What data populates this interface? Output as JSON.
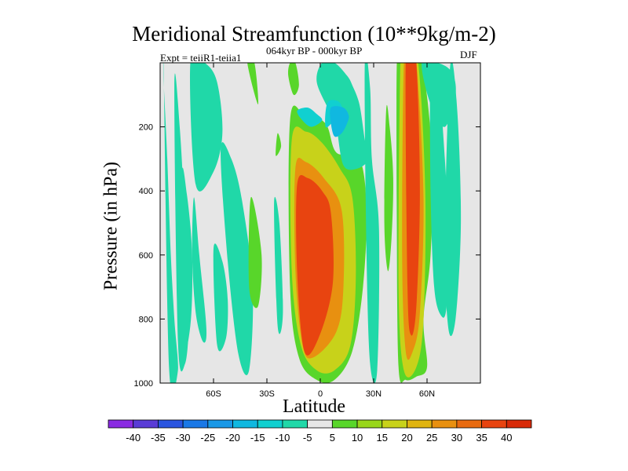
{
  "chart_data": {
    "type": "heatmap",
    "title": "Meridional Streamfunction (10**9kg/m-2)",
    "subtitle": "064kyr BP - 000kyr BP",
    "annotation_left": "Expt = teiiR1-teiia1",
    "annotation_right": "DJF",
    "xlabel": "Latitude",
    "ylabel": "Pressure (in hPa)",
    "xlim": [
      -90,
      90
    ],
    "ylim": [
      1000,
      0
    ],
    "y_inverted": true,
    "x_ticks": [
      {
        "value": -60,
        "label": "60S"
      },
      {
        "value": -30,
        "label": "30S"
      },
      {
        "value": 0,
        "label": "0"
      },
      {
        "value": 30,
        "label": "30N"
      },
      {
        "value": 60,
        "label": "60N"
      }
    ],
    "y_ticks": [
      {
        "value": 200,
        "label": "200"
      },
      {
        "value": 400,
        "label": "400"
      },
      {
        "value": 600,
        "label": "600"
      },
      {
        "value": 800,
        "label": "800"
      },
      {
        "value": 1000,
        "label": "1000"
      }
    ],
    "zero_band_color": "#e6e6e6",
    "colorbar": {
      "levels": [
        "-40",
        "-35",
        "-30",
        "-25",
        "-20",
        "-15",
        "-10",
        "-5",
        "5",
        "10",
        "15",
        "20",
        "25",
        "30",
        "35",
        "40"
      ],
      "colors": [
        "#8a2be2",
        "#5a3cd6",
        "#2a55e0",
        "#1a78e6",
        "#1a98e6",
        "#10b8e0",
        "#10d0d0",
        "#20d8a8",
        "#e6e6e6",
        "#58d62a",
        "#98d61a",
        "#c8d21a",
        "#e0b410",
        "#e89010",
        "#e86a10",
        "#e84410",
        "#d82a08"
      ]
    },
    "fields": [
      {
        "lat": [
          -88,
          -85,
          -80,
          -82,
          -84,
          -86,
          -88
        ],
        "p": [
          30,
          950,
          960,
          800,
          600,
          300,
          60
        ],
        "value": -7
      },
      {
        "lat": [
          -82,
          -79,
          -76,
          -74,
          -76,
          -80
        ],
        "p": [
          70,
          200,
          500,
          800,
          940,
          870
        ],
        "value": -7
      },
      {
        "lat": [
          -78,
          -75,
          -72,
          -73,
          -78
        ],
        "p": [
          360,
          410,
          600,
          820,
          900
        ],
        "value": -7
      },
      {
        "lat": [
          -71,
          -68,
          -64,
          -66,
          -70,
          -72
        ],
        "p": [
          420,
          600,
          830,
          870,
          780,
          600
        ],
        "value": -7
      },
      {
        "lat": [
          -73,
          -65,
          -58,
          -55,
          -60,
          -70
        ],
        "p": [
          0,
          0,
          60,
          220,
          340,
          380
        ],
        "value": -7
      },
      {
        "lat": [
          -60,
          -55,
          -52,
          -53,
          -58
        ],
        "p": [
          580,
          620,
          740,
          860,
          880
        ],
        "value": -7
      },
      {
        "lat": [
          -56,
          -50,
          -44,
          -38,
          -40,
          -46,
          -52
        ],
        "p": [
          270,
          300,
          430,
          700,
          960,
          910,
          620
        ],
        "value": -7
      },
      {
        "lat": [
          -39,
          -33,
          -35,
          -40
        ],
        "p": [
          420,
          600,
          760,
          700
        ],
        "value": 7
      },
      {
        "lat": [
          -26,
          -23,
          -21,
          -24
        ],
        "p": [
          440,
          500,
          780,
          820
        ],
        "value": -7
      },
      {
        "lat": [
          -41,
          -37,
          -35
        ],
        "p": [
          0,
          0,
          130
        ],
        "value": 7
      },
      {
        "lat": [
          -24,
          -22,
          -25
        ],
        "p": [
          220,
          260,
          290
        ],
        "value": 7
      },
      {
        "lat": [
          -17,
          -9,
          3,
          9,
          22,
          26,
          24,
          18,
          8,
          -2,
          -12,
          -17
        ],
        "p": [
          180,
          160,
          190,
          280,
          300,
          460,
          700,
          900,
          990,
          990,
          920,
          700
        ],
        "value": 8
      },
      {
        "lat": [
          -16,
          -8,
          1,
          11,
          18,
          20,
          17,
          8,
          -2,
          -11,
          -16
        ],
        "p": [
          240,
          215,
          250,
          330,
          420,
          660,
          880,
          960,
          960,
          880,
          650
        ],
        "value": 18
      },
      {
        "lat": [
          -14,
          -8,
          2,
          12,
          13,
          9,
          -4,
          -10,
          -14
        ],
        "p": [
          330,
          310,
          360,
          460,
          700,
          840,
          920,
          880,
          650
        ],
        "value": 28
      },
      {
        "lat": [
          -13,
          -7,
          1,
          6,
          7,
          -1,
          -9,
          -13
        ],
        "p": [
          380,
          360,
          400,
          470,
          690,
          860,
          900,
          650
        ],
        "value": 38
      },
      {
        "lat": [
          9,
          5,
          -2,
          1,
          8,
          15,
          18,
          22,
          25,
          27,
          21,
          13
        ],
        "p": [
          200,
          150,
          60,
          0,
          0,
          40,
          70,
          130,
          240,
          300,
          330,
          320
        ],
        "value": -7
      },
      {
        "lat": [
          4,
          10,
          13,
          12,
          8,
          3
        ],
        "p": [
          125,
          120,
          150,
          165,
          180,
          200
        ],
        "value": -12
      },
      {
        "lat": [
          -13,
          -7,
          -2,
          1,
          -5,
          -10
        ],
        "p": [
          150,
          140,
          160,
          180,
          200,
          180
        ],
        "value": -12
      },
      {
        "lat": [
          6,
          13,
          16,
          15,
          12,
          8,
          6
        ],
        "p": [
          140,
          140,
          165,
          190,
          220,
          230,
          190
        ],
        "value": -18
      },
      {
        "lat": [
          -18,
          -15,
          -12,
          -14,
          -17
        ],
        "p": [
          40,
          100,
          70,
          0,
          0
        ],
        "value": 7
      },
      {
        "lat": [
          25,
          28,
          29,
          33,
          32,
          28,
          26
        ],
        "p": [
          0,
          80,
          300,
          520,
          960,
          940,
          600
        ],
        "value": -7
      },
      {
        "lat": [
          37,
          39,
          41,
          40,
          38,
          36
        ],
        "p": [
          150,
          200,
          360,
          550,
          650,
          500
        ],
        "value": 7
      },
      {
        "lat": [
          43,
          45,
          50,
          57,
          63,
          62,
          58,
          60,
          54,
          48,
          44,
          43
        ],
        "p": [
          0,
          0,
          40,
          0,
          300,
          600,
          800,
          950,
          980,
          990,
          950,
          500
        ],
        "value": 8
      },
      {
        "lat": [
          45,
          47,
          50,
          55,
          59,
          58,
          54,
          47,
          44
        ],
        "p": [
          0,
          0,
          20,
          0,
          400,
          800,
          950,
          960,
          700
        ],
        "value": 18
      },
      {
        "lat": [
          47,
          50,
          54,
          58,
          56,
          52,
          48,
          46
        ],
        "p": [
          0,
          0,
          0,
          420,
          780,
          900,
          900,
          600
        ],
        "value": 28
      },
      {
        "lat": [
          48,
          51,
          54,
          56,
          54,
          51,
          49
        ],
        "p": [
          0,
          0,
          0,
          400,
          760,
          850,
          700
        ],
        "value": 38
      },
      {
        "lat": [
          62,
          66,
          70,
          72,
          71,
          68,
          64,
          62
        ],
        "p": [
          0,
          20,
          300,
          540,
          760,
          790,
          700,
          400
        ],
        "value": -7
      },
      {
        "lat": [
          73,
          77,
          79,
          76,
          72,
          70
        ],
        "p": [
          10,
          150,
          500,
          800,
          830,
          550
        ],
        "value": -7
      },
      {
        "lat": [
          57,
          66,
          74,
          76,
          70,
          62
        ],
        "p": [
          0,
          0,
          30,
          100,
          200,
          130
        ],
        "value": -7
      }
    ]
  }
}
